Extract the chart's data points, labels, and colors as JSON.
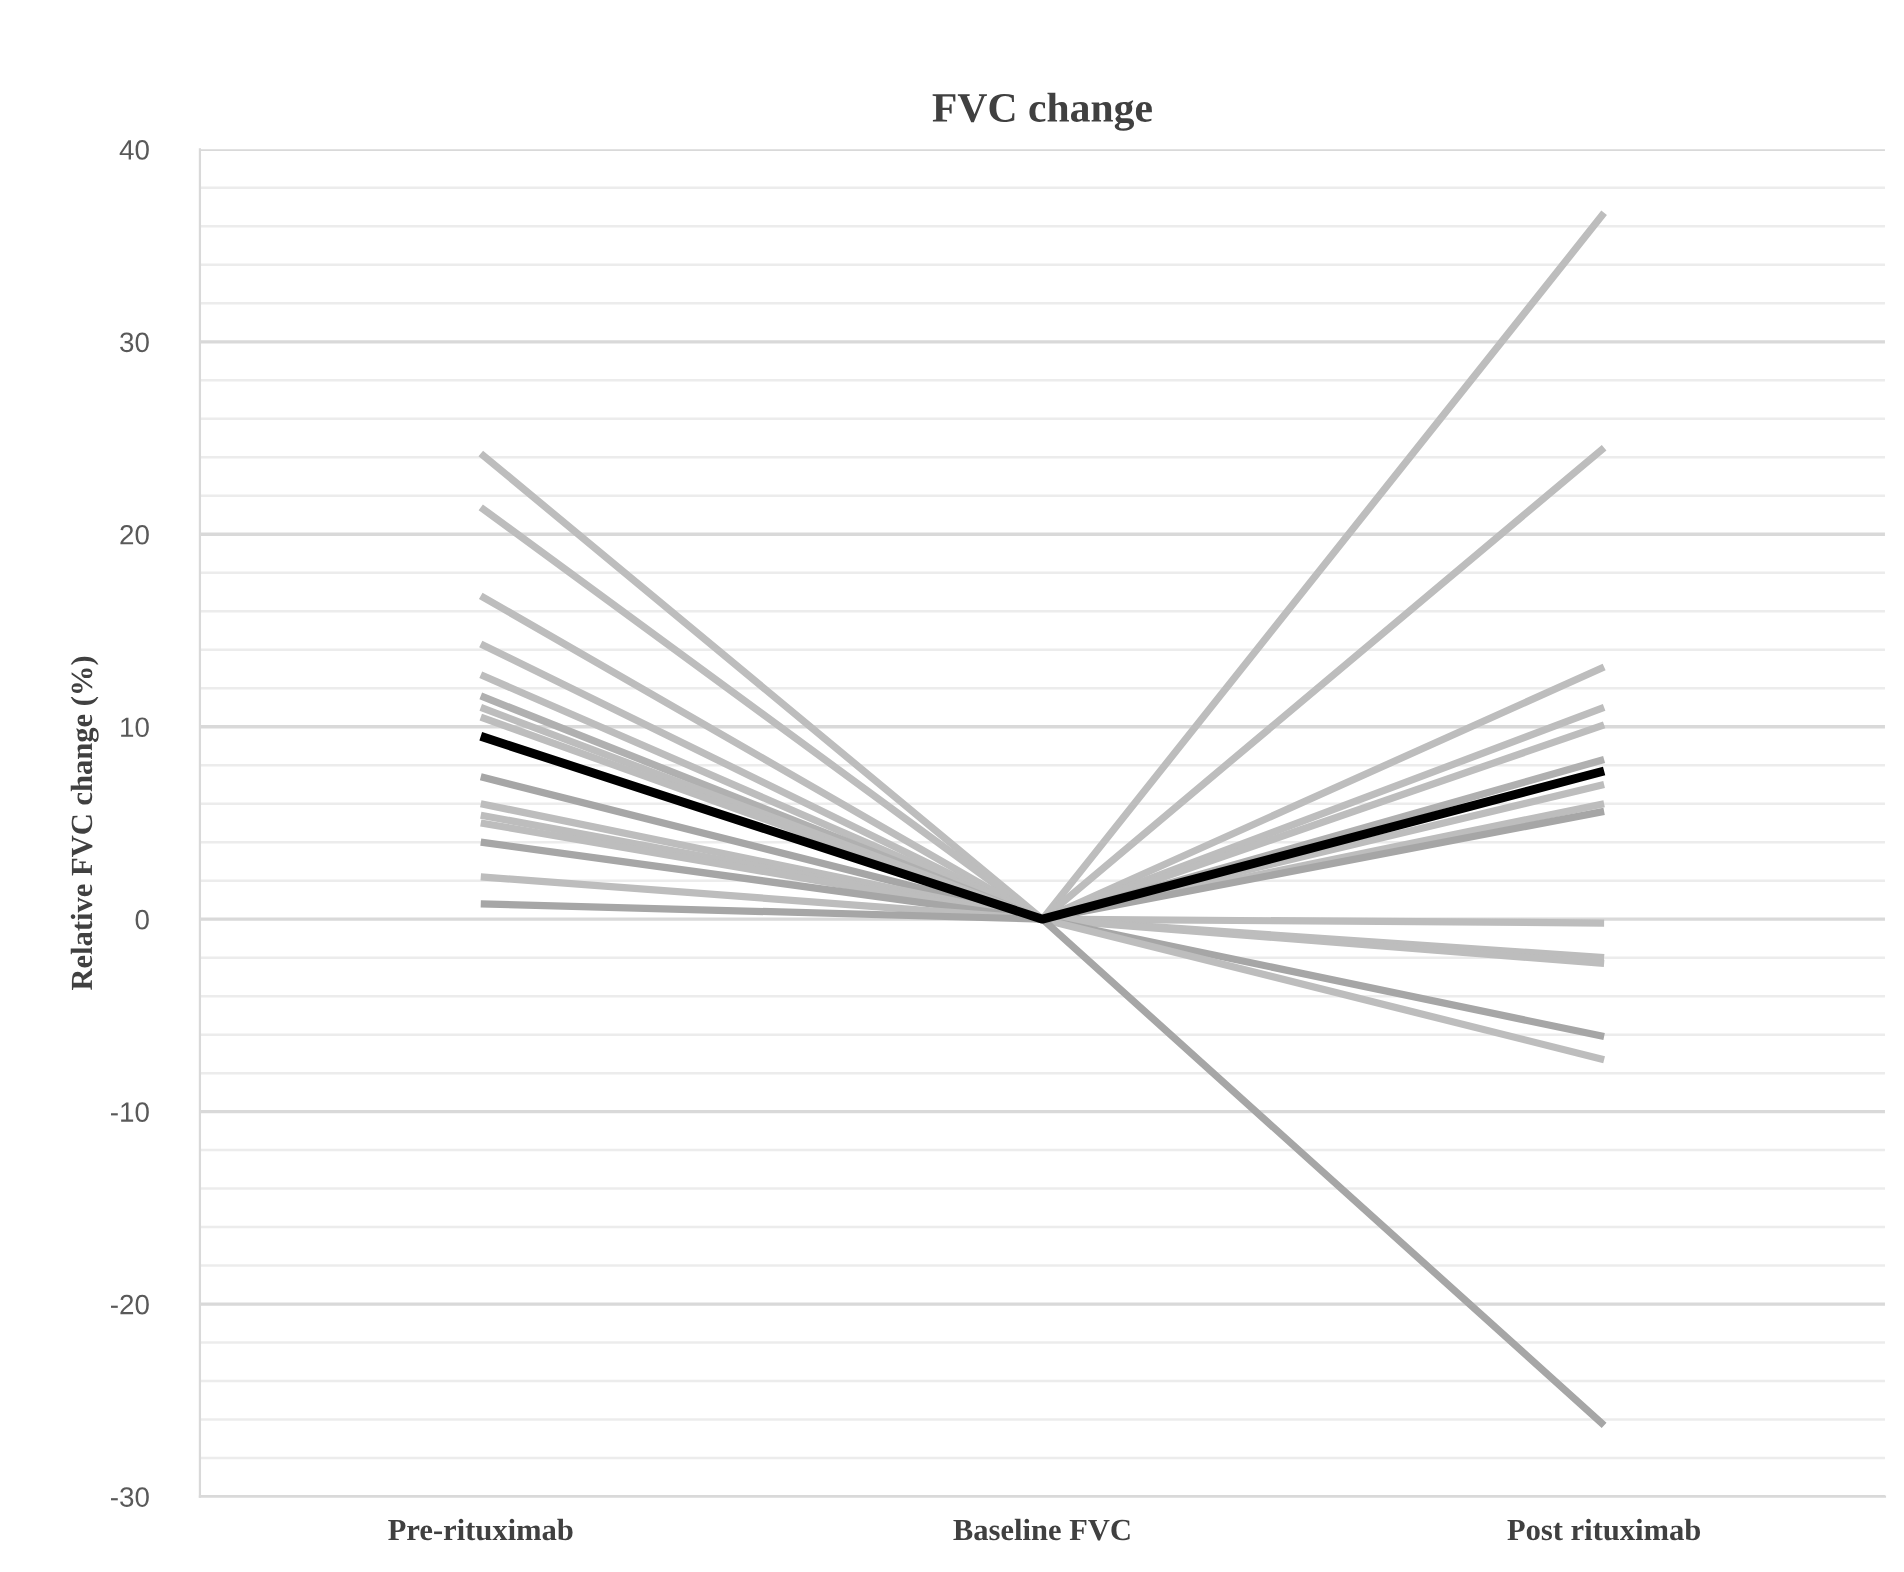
{
  "chart_data": {
    "type": "line",
    "title": "FVC change",
    "ylabel": "Relative FVC change (%)",
    "categories": [
      "Pre-rituximab",
      "Baseline FVC",
      "Post rituximab"
    ],
    "ylim": [
      -30,
      40
    ],
    "yticks": [
      -30,
      {
        "value": -28,
        "label": null
      },
      {
        "value": -26,
        "label": null
      },
      {
        "value": -24,
        "label": null
      },
      {
        "value": -22,
        "label": null
      },
      -20,
      {
        "value": -18,
        "label": null
      },
      {
        "value": -16,
        "label": null
      },
      {
        "value": -14,
        "label": null
      },
      {
        "value": -12,
        "label": null
      },
      -10,
      {
        "value": -8,
        "label": null
      },
      {
        "value": -6,
        "label": null
      },
      {
        "value": -4,
        "label": null
      },
      {
        "value": -2,
        "label": null
      },
      0,
      {
        "value": 2,
        "label": null
      },
      {
        "value": 4,
        "label": null
      },
      {
        "value": 6,
        "label": null
      },
      {
        "value": 8,
        "label": null
      },
      10,
      {
        "value": 12,
        "label": null
      },
      {
        "value": 14,
        "label": null
      },
      {
        "value": 16,
        "label": null
      },
      {
        "value": 18,
        "label": null
      },
      20,
      {
        "value": 22,
        "label": null
      },
      {
        "value": 24,
        "label": null
      },
      {
        "value": 26,
        "label": null
      },
      {
        "value": 28,
        "label": null
      },
      30,
      {
        "value": 32,
        "label": null
      },
      {
        "value": 34,
        "label": null
      },
      {
        "value": 36,
        "label": null
      },
      {
        "value": 38,
        "label": null
      },
      40
    ],
    "grid": "y",
    "legend": false,
    "marker": "none",
    "line_style": "solid",
    "series": [
      {
        "color": "#bdbdbd",
        "values": [
          24.2,
          0,
          36.7
        ]
      },
      {
        "color": "#bdbdbd",
        "values": [
          21.4,
          0,
          24.5
        ]
      },
      {
        "color": "#bdbdbd",
        "values": [
          16.8,
          0,
          13.1
        ]
      },
      {
        "color": "#bdbdbd",
        "values": [
          14.3,
          0,
          11.0
        ]
      },
      {
        "color": "#bdbdbd",
        "values": [
          12.7,
          0,
          10.1
        ]
      },
      {
        "color": "#b0b0b0",
        "values": [
          11.6,
          0,
          8.3
        ]
      },
      {
        "color": "#bdbdbd",
        "values": [
          11.0,
          0,
          7.0
        ]
      },
      {
        "color": "#bdbdbd",
        "values": [
          10.5,
          0,
          6.0
        ]
      },
      {
        "color": "#a6a6a6",
        "values": [
          7.4,
          0,
          5.6
        ]
      },
      {
        "color": "#bdbdbd",
        "values": [
          6.0,
          0,
          -0.2
        ]
      },
      {
        "color": "#bdbdbd",
        "values": [
          5.4,
          0,
          -2.0
        ]
      },
      {
        "color": "#bdbdbd",
        "values": [
          5.0,
          0,
          -2.3
        ]
      },
      {
        "color": "#a6a6a6",
        "values": [
          4.0,
          0,
          -6.1
        ]
      },
      {
        "color": "#bdbdbd",
        "values": [
          2.2,
          0,
          -7.3
        ]
      },
      {
        "color": "#a6a6a6",
        "values": [
          0.8,
          0,
          -26.3
        ]
      },
      {
        "color": "#000000",
        "values": [
          9.5,
          0,
          7.7
        ]
      }
    ]
  }
}
